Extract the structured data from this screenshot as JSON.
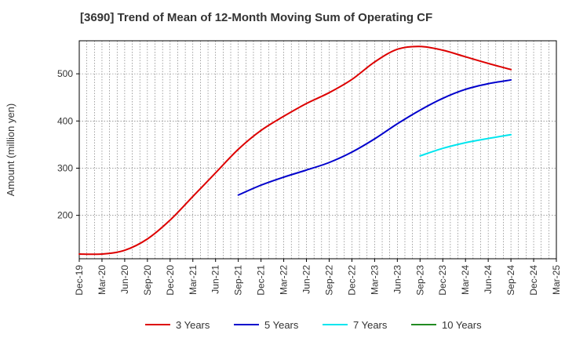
{
  "chart_data": {
    "type": "line",
    "title": "[3690]  Trend of Mean of 12-Month Moving Sum of Operating CF",
    "xlabel": "",
    "ylabel": "Amount (million yen)",
    "ylim": [
      108,
      570
    ],
    "yticks": [
      200,
      300,
      400,
      500
    ],
    "grid": true,
    "legend_position": "bottom",
    "categories": [
      "Dec-19",
      "Mar-20",
      "Jun-20",
      "Sep-20",
      "Dec-20",
      "Mar-21",
      "Jun-21",
      "Sep-21",
      "Dec-21",
      "Mar-22",
      "Jun-22",
      "Sep-22",
      "Dec-22",
      "Mar-23",
      "Jun-23",
      "Sep-23",
      "Dec-23",
      "Mar-24",
      "Jun-24",
      "Sep-24",
      "Dec-24",
      "Mar-25"
    ],
    "series": [
      {
        "name": "3 Years",
        "color": "#dd0000",
        "values": [
          118,
          118,
          126,
          150,
          190,
          240,
          290,
          340,
          380,
          410,
          437,
          460,
          488,
          525,
          552,
          558,
          550,
          536,
          522,
          509,
          null,
          null
        ]
      },
      {
        "name": "5 Years",
        "color": "#0000cc",
        "values": [
          null,
          null,
          null,
          null,
          null,
          null,
          null,
          243,
          264,
          281,
          296,
          312,
          334,
          362,
          394,
          423,
          448,
          467,
          479,
          487,
          null,
          null
        ]
      },
      {
        "name": "7 Years",
        "color": "#00e5ee",
        "values": [
          null,
          null,
          null,
          null,
          null,
          null,
          null,
          null,
          null,
          null,
          null,
          null,
          null,
          null,
          null,
          326,
          342,
          354,
          363,
          371,
          null,
          null
        ]
      },
      {
        "name": "10 Years",
        "color": "#228b22",
        "values": [
          null,
          null,
          null,
          null,
          null,
          null,
          null,
          null,
          null,
          null,
          null,
          null,
          null,
          null,
          null,
          null,
          null,
          null,
          null,
          null,
          null,
          null
        ]
      }
    ]
  }
}
